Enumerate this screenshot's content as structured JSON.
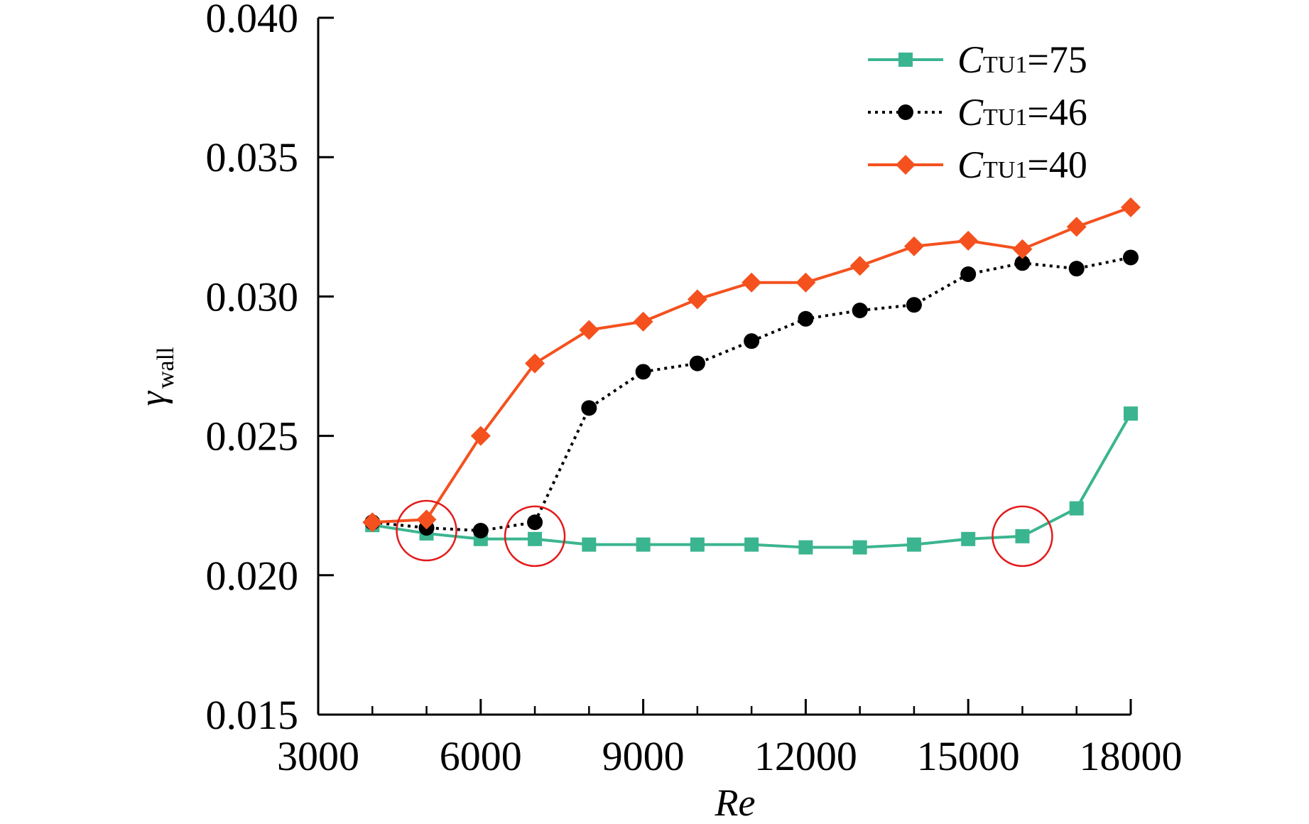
{
  "chart_data": {
    "type": "line",
    "title": "",
    "xlabel": "Re",
    "ylabel": {
      "symbol": "γ",
      "subscript": "wall"
    },
    "xlim": [
      3000,
      18000
    ],
    "ylim": [
      0.015,
      0.04
    ],
    "grid": false,
    "x_ticks": [
      3000,
      6000,
      9000,
      12000,
      15000,
      18000
    ],
    "x_tick_labels": [
      "3000",
      "6000",
      "9000",
      "12000",
      "15000",
      "18000"
    ],
    "x_minor_ticks": [
      4000,
      5000,
      7000,
      8000,
      10000,
      11000,
      13000,
      14000,
      16000,
      17000
    ],
    "y_ticks": [
      0.015,
      0.02,
      0.025,
      0.03,
      0.035,
      0.04
    ],
    "y_tick_labels": [
      "0.015",
      "0.020",
      "0.025",
      "0.030",
      "0.035",
      "0.040"
    ],
    "x": [
      4000,
      5000,
      6000,
      7000,
      8000,
      9000,
      10000,
      11000,
      12000,
      13000,
      14000,
      15000,
      16000,
      17000,
      18000
    ],
    "legend_position": "top-right",
    "series": [
      {
        "name": "C_TU1=75",
        "label_main": "C",
        "label_sub": "TU1",
        "label_value": "=75",
        "color": "#3bb58f",
        "line_style": "solid",
        "marker": "square",
        "values": [
          0.0218,
          0.0215,
          0.0213,
          0.0213,
          0.0211,
          0.0211,
          0.0211,
          0.0211,
          0.021,
          0.021,
          0.0211,
          0.0213,
          0.0214,
          0.0224,
          0.0258
        ]
      },
      {
        "name": "C_TU1=46",
        "label_main": "C",
        "label_sub": "TU1",
        "label_value": "=46",
        "color": "#000000",
        "line_style": "dotted",
        "marker": "circle",
        "values": [
          0.0219,
          0.0217,
          0.0216,
          0.0219,
          0.026,
          0.0273,
          0.0276,
          0.0284,
          0.0292,
          0.0295,
          0.0297,
          0.0308,
          0.0312,
          0.031,
          0.0314
        ]
      },
      {
        "name": "C_TU1=40",
        "label_main": "C",
        "label_sub": "TU1",
        "label_value": "=40",
        "color": "#f4511e",
        "line_style": "solid",
        "marker": "diamond",
        "values": [
          0.0219,
          0.022,
          0.025,
          0.0276,
          0.0288,
          0.0291,
          0.0299,
          0.0305,
          0.0305,
          0.0311,
          0.0318,
          0.032,
          0.0317,
          0.0325,
          0.0332
        ]
      }
    ],
    "annotations": [
      {
        "type": "circle",
        "x": 5000,
        "y": 0.0216,
        "color": "#e31a1c"
      },
      {
        "type": "circle",
        "x": 7000,
        "y": 0.0214,
        "color": "#e31a1c"
      },
      {
        "type": "circle",
        "x": 16000,
        "y": 0.0214,
        "color": "#e31a1c"
      }
    ]
  }
}
